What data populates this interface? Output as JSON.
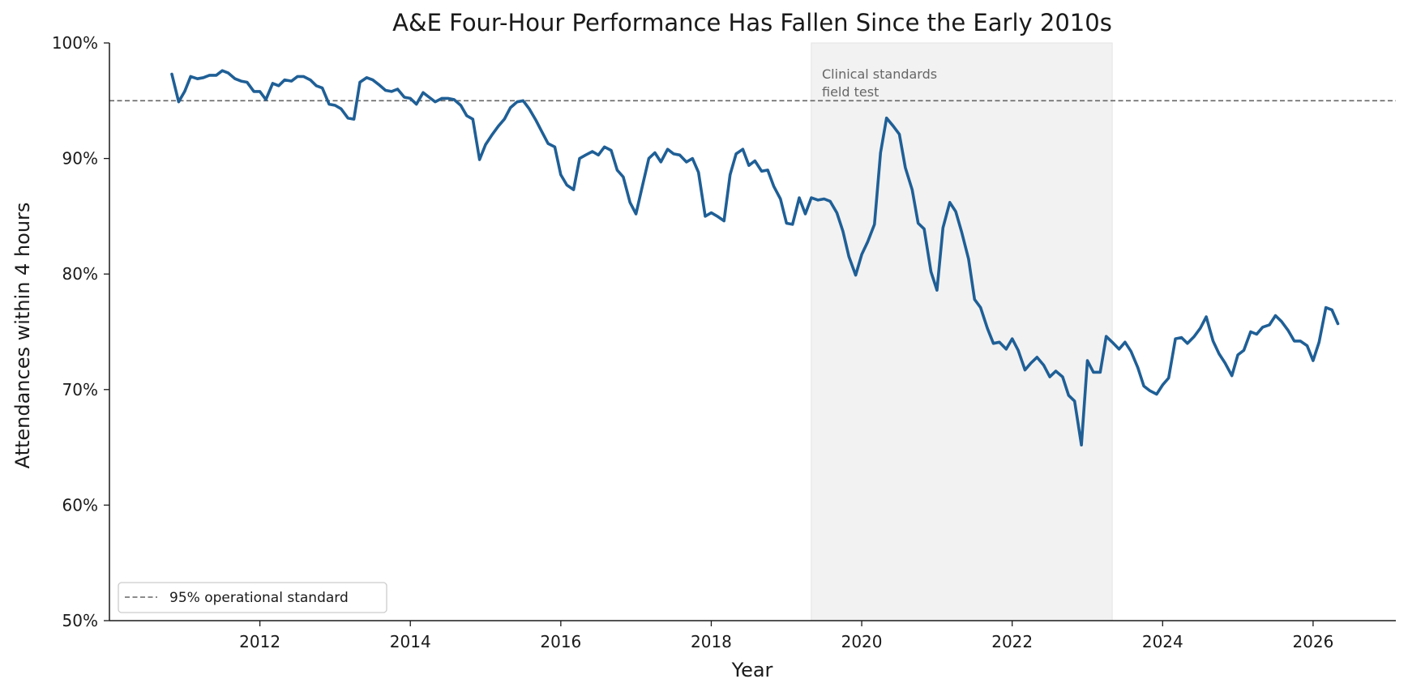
{
  "chart_data": {
    "type": "line",
    "title": "A&E Four-Hour Performance Has Fallen Since the Early 2010s",
    "xlabel": "Year",
    "ylabel": "Attendances within 4 hours",
    "xlim": [
      2010.0,
      2027.1
    ],
    "ylim": [
      50,
      100
    ],
    "x_ticks": [
      2012,
      2014,
      2016,
      2018,
      2020,
      2022,
      2024,
      2026
    ],
    "x_tick_labels": [
      "2012",
      "2014",
      "2016",
      "2018",
      "2020",
      "2022",
      "2024",
      "2026"
    ],
    "y_ticks": [
      50,
      60,
      70,
      80,
      90,
      100
    ],
    "y_tick_labels": [
      "50%",
      "60%",
      "70%",
      "80%",
      "90%",
      "100%"
    ],
    "grid": false,
    "legend_placement": "lower-left",
    "colors": {
      "series": "#1f5f96",
      "reference": "#666666",
      "shade": "#f2f2f2"
    },
    "reference_line": {
      "y": 95,
      "label": "95% operational standard"
    },
    "shaded_region": {
      "x_start": 2019.33,
      "x_end": 2023.33,
      "label_line1": "Clinical standards",
      "label_line2": "field test"
    },
    "series": [
      {
        "x": [
          2010.83,
          2010.92,
          2011.0,
          2011.08,
          2011.17,
          2011.25,
          2011.33,
          2011.42,
          2011.5,
          2011.58,
          2011.67,
          2011.75,
          2011.83,
          2011.92,
          2012.0,
          2012.08,
          2012.17,
          2012.25,
          2012.33,
          2012.42,
          2012.5,
          2012.58,
          2012.67,
          2012.75,
          2012.83,
          2012.92,
          2013.0,
          2013.08,
          2013.17,
          2013.25,
          2013.33,
          2013.42,
          2013.5,
          2013.58,
          2013.67,
          2013.75,
          2013.83,
          2013.92,
          2014.0,
          2014.08,
          2014.17,
          2014.25,
          2014.33,
          2014.42,
          2014.5,
          2014.58,
          2014.67,
          2014.75,
          2014.83,
          2014.92,
          2015.0,
          2015.08,
          2015.17,
          2015.25,
          2015.33,
          2015.42,
          2015.5,
          2015.58,
          2015.67,
          2015.75,
          2015.83,
          2015.92,
          2016.0,
          2016.08,
          2016.17,
          2016.25,
          2016.33,
          2016.42,
          2016.5,
          2016.58,
          2016.67,
          2016.75,
          2016.83,
          2016.92,
          2017.0,
          2017.08,
          2017.17,
          2017.25,
          2017.33,
          2017.42,
          2017.5,
          2017.58,
          2017.67,
          2017.75,
          2017.83,
          2017.92,
          2018.0,
          2018.08,
          2018.17,
          2018.25,
          2018.33,
          2018.42,
          2018.5,
          2018.58,
          2018.67,
          2018.75,
          2018.83,
          2018.92,
          2019.0,
          2019.08,
          2019.17,
          2019.25,
          2019.33,
          2019.42,
          2019.5,
          2019.58,
          2019.67,
          2019.75,
          2019.83,
          2019.92,
          2020.0,
          2020.08,
          2020.17,
          2020.25,
          2020.33,
          2020.42,
          2020.5,
          2020.58,
          2020.67,
          2020.75,
          2020.83,
          2020.92,
          2021.0,
          2021.08,
          2021.17,
          2021.25,
          2021.33,
          2021.42,
          2021.5,
          2021.58,
          2021.67,
          2021.75,
          2021.83,
          2021.92,
          2022.0,
          2022.08,
          2022.17,
          2022.25,
          2022.33,
          2022.42,
          2022.5,
          2022.58,
          2022.67,
          2022.75,
          2022.83,
          2022.92,
          2023.0,
          2023.08,
          2023.17,
          2023.25,
          2023.33,
          2023.42,
          2023.5,
          2023.58,
          2023.67,
          2023.75,
          2023.83,
          2023.92,
          2024.0,
          2024.08,
          2024.17,
          2024.25,
          2024.33,
          2024.42,
          2024.5,
          2024.58,
          2024.67,
          2024.75,
          2024.83,
          2024.92,
          2025.0,
          2025.08,
          2025.17,
          2025.25,
          2025.33,
          2025.42,
          2025.5,
          2025.58,
          2025.67,
          2025.75,
          2025.83,
          2025.92,
          2026.0,
          2026.08,
          2026.17,
          2026.25,
          2026.33
        ],
        "values": [
          97.3,
          94.9,
          95.8,
          97.1,
          96.9,
          97.0,
          97.2,
          97.2,
          97.6,
          97.4,
          96.9,
          96.7,
          96.6,
          95.8,
          95.8,
          95.1,
          96.5,
          96.3,
          96.8,
          96.7,
          97.1,
          97.1,
          96.8,
          96.3,
          96.1,
          94.7,
          94.6,
          94.3,
          93.5,
          93.4,
          96.6,
          97.0,
          96.8,
          96.4,
          95.9,
          95.8,
          96.0,
          95.3,
          95.2,
          94.7,
          95.7,
          95.3,
          94.9,
          95.2,
          95.2,
          95.1,
          94.6,
          93.7,
          93.4,
          89.9,
          91.2,
          92.0,
          92.8,
          93.4,
          94.4,
          94.9,
          95.0,
          94.3,
          93.3,
          92.3,
          91.3,
          91.0,
          88.6,
          87.7,
          87.3,
          90.0,
          90.3,
          90.6,
          90.3,
          91.0,
          90.7,
          89.0,
          88.4,
          86.2,
          85.2,
          87.5,
          90.0,
          90.5,
          89.7,
          90.8,
          90.4,
          90.3,
          89.7,
          90.0,
          88.8,
          85.0,
          85.3,
          85.0,
          84.6,
          88.6,
          90.4,
          90.8,
          89.4,
          89.8,
          88.9,
          89.0,
          87.6,
          86.5,
          84.4,
          84.3,
          86.6,
          85.2,
          86.6,
          86.4,
          86.5,
          86.3,
          85.3,
          83.7,
          81.5,
          79.9,
          81.7,
          82.8,
          84.3,
          90.5,
          93.5,
          92.8,
          92.1,
          89.2,
          87.3,
          84.4,
          83.9,
          80.2,
          78.6,
          84.0,
          86.2,
          85.4,
          83.6,
          81.3,
          77.8,
          77.1,
          75.3,
          74.0,
          74.1,
          73.5,
          74.4,
          73.4,
          71.7,
          72.3,
          72.8,
          72.1,
          71.1,
          71.6,
          71.1,
          69.5,
          69.0,
          65.2,
          72.5,
          71.5,
          71.5,
          74.6,
          74.1,
          73.5,
          74.1,
          73.3,
          71.9,
          70.3,
          69.9,
          69.6,
          70.4,
          71.0,
          74.4,
          74.5,
          74.0,
          74.6,
          75.3,
          76.3,
          74.2,
          73.1,
          72.3,
          71.2,
          73.0,
          73.4,
          75.0,
          74.8,
          75.4,
          75.6,
          76.4,
          75.9,
          75.1,
          74.2,
          74.2,
          73.8,
          72.5,
          74.1,
          77.1,
          76.9,
          75.7
        ]
      }
    ]
  }
}
